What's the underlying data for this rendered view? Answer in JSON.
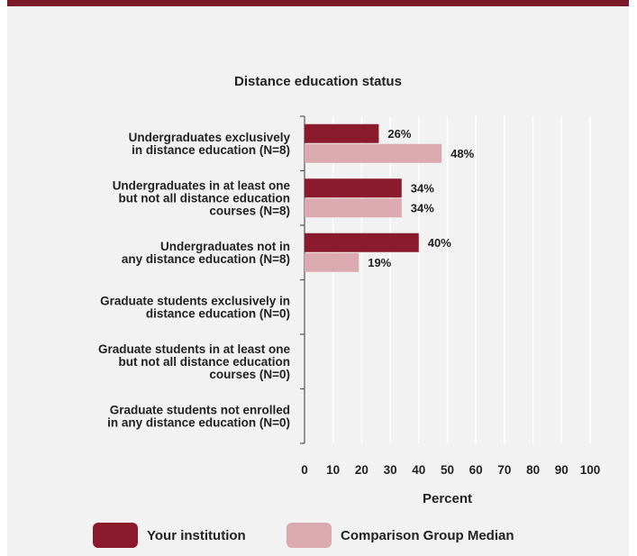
{
  "colors": {
    "topbar": "#7a1a2a",
    "background": "#f2f2f2",
    "grid": "#ffffff"
  },
  "chart_data": {
    "type": "bar",
    "orientation": "horizontal",
    "title": "Distance education status",
    "xlabel": "Percent",
    "ylabel": "",
    "xlim": [
      0,
      100
    ],
    "x_ticks": [
      0,
      10,
      20,
      30,
      40,
      50,
      60,
      70,
      80,
      90,
      100
    ],
    "grid": true,
    "legend_position": "bottom",
    "categories": [
      [
        "Undergraduates exclusively",
        "in distance education (N=8)"
      ],
      [
        "Undergraduates in at least one",
        "but not all distance education",
        "courses (N=8)"
      ],
      [
        "Undergraduates not in",
        "any distance education (N=8)"
      ],
      [
        "Graduate students exclusively in",
        "distance education (N=0)"
      ],
      [
        "Graduate students in at least one",
        "but not all distance education",
        "courses (N=0)"
      ],
      [
        "Graduate students not enrolled",
        "in any distance education (N=0)"
      ]
    ],
    "series": [
      {
        "name": "Your institution",
        "color": "#8b1a2c",
        "values": [
          26,
          34,
          40,
          null,
          null,
          null
        ],
        "labels": [
          "26%",
          "34%",
          "40%",
          "",
          "",
          ""
        ]
      },
      {
        "name": "Comparison Group Median",
        "color": "#dba9b0",
        "values": [
          48,
          34,
          19,
          null,
          null,
          null
        ],
        "labels": [
          "48%",
          "34%",
          "19%",
          "",
          "",
          ""
        ]
      }
    ]
  }
}
